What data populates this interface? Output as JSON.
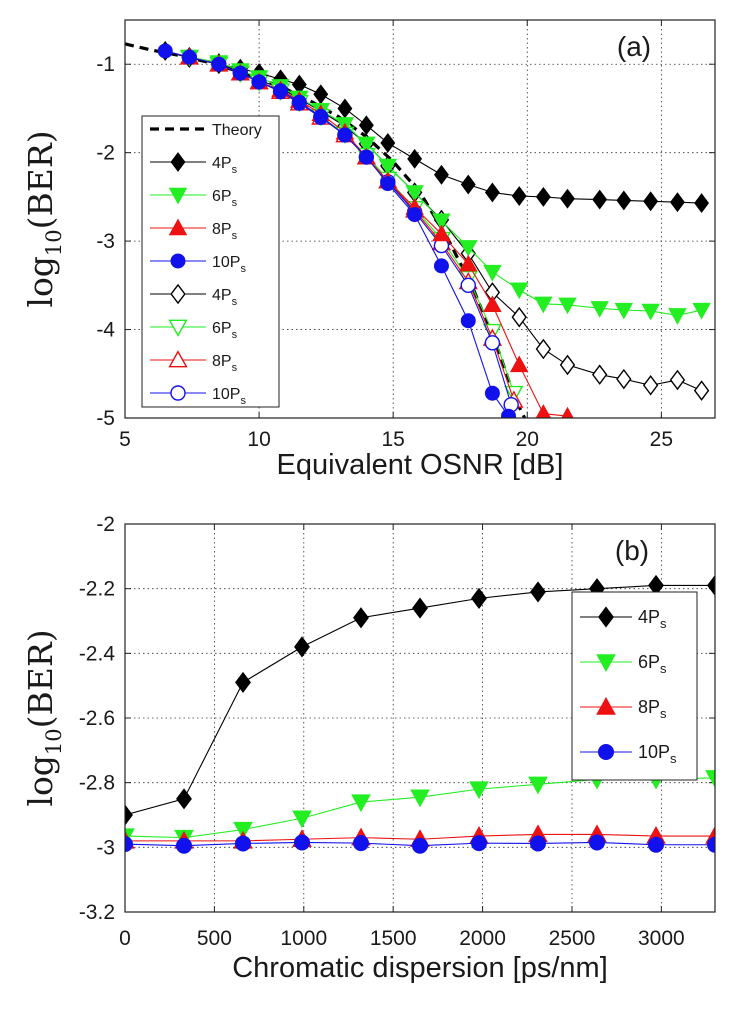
{
  "chart_data": [
    {
      "id": "a",
      "type": "line",
      "panel_label": "(a)",
      "xlabel": "Equivalent OSNR [dB]",
      "ylabel": {
        "main": "log",
        "sub": "10",
        "tail": "(BER)"
      },
      "xlim": [
        5,
        27
      ],
      "ylim": [
        -5,
        -0.5
      ],
      "xticks": [
        5,
        10,
        15,
        20,
        25
      ],
      "xtick_labels": [
        "5",
        "10",
        "15",
        "20",
        "25"
      ],
      "yticks": [
        -1,
        -2,
        -3,
        -4,
        -5
      ],
      "ytick_labels": [
        "-1",
        "-2",
        "-3",
        "-4",
        "-5"
      ],
      "grid": true,
      "legend_position": "left",
      "theory": {
        "name": "Theory",
        "x": [
          5,
          6,
          7,
          8,
          9,
          10,
          11,
          12,
          13,
          14,
          15,
          16,
          17,
          18,
          19,
          19.5,
          19.9
        ],
        "y": [
          -0.77,
          -0.84,
          -0.9,
          -0.97,
          -1.06,
          -1.16,
          -1.28,
          -1.43,
          -1.6,
          -1.82,
          -2.1,
          -2.45,
          -2.95,
          -3.55,
          -4.3,
          -4.75,
          -5.0
        ]
      },
      "series": [
        {
          "name": "4P",
          "sub": "s",
          "color": "#000000",
          "marker": "diamond",
          "filled": true,
          "x": [
            6.5,
            7.4,
            8.5,
            9.3,
            10.0,
            10.8,
            11.5,
            12.3,
            13.2,
            14.0,
            14.8,
            15.8,
            16.8,
            17.8,
            18.7,
            19.7,
            20.6,
            21.5,
            22.7,
            23.6,
            24.6,
            25.6,
            26.5
          ],
          "y": [
            -0.85,
            -0.93,
            -1.0,
            -1.05,
            -1.1,
            -1.17,
            -1.23,
            -1.34,
            -1.5,
            -1.69,
            -1.89,
            -2.07,
            -2.25,
            -2.36,
            -2.45,
            -2.49,
            -2.5,
            -2.52,
            -2.53,
            -2.54,
            -2.55,
            -2.56,
            -2.57
          ]
        },
        {
          "name": "6P",
          "sub": "s",
          "color": "#22ee22",
          "marker": "triangle-down",
          "filled": true,
          "x": [
            7.4,
            8.5,
            9.3,
            10.0,
            10.8,
            11.5,
            12.3,
            13.2,
            14.0,
            14.8,
            15.8,
            16.8,
            17.8,
            18.7,
            19.7,
            20.6,
            21.5,
            22.7,
            23.6,
            24.6,
            25.6,
            26.5
          ],
          "y": [
            -0.92,
            -0.98,
            -1.07,
            -1.15,
            -1.25,
            -1.38,
            -1.52,
            -1.68,
            -1.9,
            -2.15,
            -2.45,
            -2.77,
            -3.07,
            -3.35,
            -3.55,
            -3.71,
            -3.72,
            -3.76,
            -3.78,
            -3.79,
            -3.84,
            -3.78
          ]
        },
        {
          "name": "8P",
          "sub": "s",
          "color": "#ee1111",
          "marker": "triangle-up",
          "filled": true,
          "x": [
            7.4,
            8.5,
            9.3,
            10.0,
            10.8,
            11.5,
            12.3,
            13.2,
            14.0,
            14.8,
            15.8,
            16.8,
            17.8,
            18.7,
            19.7,
            20.6,
            21.5
          ],
          "y": [
            -0.92,
            -1.0,
            -1.1,
            -1.2,
            -1.29,
            -1.41,
            -1.56,
            -1.77,
            -2.05,
            -2.32,
            -2.62,
            -2.92,
            -3.26,
            -3.72,
            -4.4,
            -4.95,
            -4.98
          ]
        },
        {
          "name": "10P",
          "sub": "s",
          "color": "#1111ee",
          "marker": "circle",
          "filled": true,
          "x": [
            6.5,
            7.4,
            8.5,
            9.3,
            10.0,
            10.8,
            11.5,
            12.3,
            13.2,
            14.0,
            14.8,
            15.8,
            16.8,
            17.8,
            18.7,
            19.3
          ],
          "y": [
            -0.85,
            -0.92,
            -1.0,
            -1.1,
            -1.2,
            -1.3,
            -1.43,
            -1.59,
            -1.8,
            -2.05,
            -2.35,
            -2.7,
            -3.28,
            -3.9,
            -4.72,
            -4.98
          ]
        },
        {
          "name": "4P",
          "sub": "s",
          "color": "#000000",
          "marker": "diamond",
          "filled": false,
          "x": [
            7.4,
            8.5,
            9.3,
            10.0,
            10.8,
            11.5,
            12.3,
            13.2,
            14.0,
            14.8,
            15.8,
            16.8,
            17.8,
            18.7,
            19.7,
            20.6,
            21.5,
            22.7,
            23.6,
            24.6,
            25.6,
            26.5
          ],
          "y": [
            -0.92,
            -0.99,
            -1.09,
            -1.18,
            -1.27,
            -1.39,
            -1.53,
            -1.7,
            -1.9,
            -2.15,
            -2.45,
            -2.76,
            -3.14,
            -3.58,
            -3.86,
            -4.22,
            -4.4,
            -4.51,
            -4.56,
            -4.63,
            -4.57,
            -4.69
          ]
        },
        {
          "name": "6P",
          "sub": "s",
          "color": "#22ee22",
          "marker": "triangle-down",
          "filled": false,
          "x": [
            7.4,
            8.5,
            9.3,
            10.0,
            10.8,
            11.5,
            12.3,
            13.2,
            14.0,
            14.8,
            15.8,
            16.8,
            17.8,
            18.7,
            19.5
          ],
          "y": [
            -0.92,
            -1.0,
            -1.1,
            -1.2,
            -1.3,
            -1.43,
            -1.59,
            -1.79,
            -2.03,
            -2.3,
            -2.63,
            -2.98,
            -3.42,
            -4.02,
            -4.72
          ]
        },
        {
          "name": "8P",
          "sub": "s",
          "color": "#ee1111",
          "marker": "triangle-up",
          "filled": false,
          "x": [
            7.4,
            8.5,
            9.3,
            10.0,
            10.8,
            11.5,
            12.3,
            13.2,
            14.0,
            14.8,
            15.8,
            16.8,
            17.8,
            18.7,
            19.5
          ],
          "y": [
            -0.92,
            -1.0,
            -1.1,
            -1.2,
            -1.31,
            -1.44,
            -1.6,
            -1.8,
            -2.05,
            -2.32,
            -2.65,
            -3.02,
            -3.46,
            -4.1,
            -4.8
          ]
        },
        {
          "name": "10P",
          "sub": "s",
          "color": "#1111ee",
          "marker": "circle",
          "filled": false,
          "x": [
            7.4,
            8.5,
            9.3,
            10.0,
            10.8,
            11.5,
            12.3,
            13.2,
            14.0,
            14.8,
            15.8,
            16.8,
            17.8,
            18.7,
            19.4
          ],
          "y": [
            -0.92,
            -1.0,
            -1.1,
            -1.2,
            -1.31,
            -1.44,
            -1.6,
            -1.8,
            -2.05,
            -2.33,
            -2.67,
            -3.05,
            -3.5,
            -4.15,
            -4.85
          ]
        }
      ]
    },
    {
      "id": "b",
      "type": "line",
      "panel_label": "(b)",
      "xlabel": "Chromatic dispersion [ps/nm]",
      "ylabel": {
        "main": "log",
        "sub": "10",
        "tail": "(BER)"
      },
      "xlim": [
        0,
        3300
      ],
      "ylim": [
        -3.2,
        -2.0
      ],
      "xticks": [
        0,
        500,
        1000,
        1500,
        2000,
        2500,
        3000
      ],
      "xtick_labels": [
        "0",
        "500",
        "1000",
        "1500",
        "2000",
        "2500",
        "3000"
      ],
      "yticks": [
        -2,
        -2.2,
        -2.4,
        -2.6,
        -2.8,
        -3,
        -3.2
      ],
      "ytick_labels": [
        "-2",
        "-2.2",
        "-2.4",
        "-2.6",
        "-2.8",
        "-3",
        "-3.2"
      ],
      "grid": true,
      "legend_position": "right",
      "series": [
        {
          "name": "4P",
          "sub": "s",
          "color": "#000000",
          "marker": "diamond",
          "filled": true,
          "x": [
            0,
            330,
            660,
            990,
            1320,
            1650,
            1980,
            2310,
            2640,
            2970,
            3300
          ],
          "y": [
            -2.9,
            -2.85,
            -2.49,
            -2.38,
            -2.29,
            -2.26,
            -2.23,
            -2.21,
            -2.2,
            -2.19,
            -2.19
          ]
        },
        {
          "name": "6P",
          "sub": "s",
          "color": "#22ee22",
          "marker": "triangle-down",
          "filled": true,
          "x": [
            0,
            330,
            660,
            990,
            1320,
            1650,
            1980,
            2310,
            2640,
            2970,
            3300
          ],
          "y": [
            -2.965,
            -2.97,
            -2.945,
            -2.91,
            -2.86,
            -2.845,
            -2.82,
            -2.805,
            -2.79,
            -2.79,
            -2.785
          ]
        },
        {
          "name": "8P",
          "sub": "s",
          "color": "#ee1111",
          "marker": "triangle-up",
          "filled": true,
          "x": [
            0,
            330,
            660,
            990,
            1320,
            1650,
            1980,
            2310,
            2640,
            2970,
            3300
          ],
          "y": [
            -2.98,
            -2.98,
            -2.98,
            -2.975,
            -2.97,
            -2.975,
            -2.965,
            -2.96,
            -2.96,
            -2.965,
            -2.965
          ]
        },
        {
          "name": "10P",
          "sub": "s",
          "color": "#1111ee",
          "marker": "circle",
          "filled": true,
          "x": [
            0,
            330,
            660,
            990,
            1320,
            1650,
            1980,
            2310,
            2640,
            2970,
            3300
          ],
          "y": [
            -2.99,
            -2.995,
            -2.988,
            -2.985,
            -2.987,
            -2.995,
            -2.987,
            -2.988,
            -2.985,
            -2.992,
            -2.992
          ]
        }
      ]
    }
  ]
}
